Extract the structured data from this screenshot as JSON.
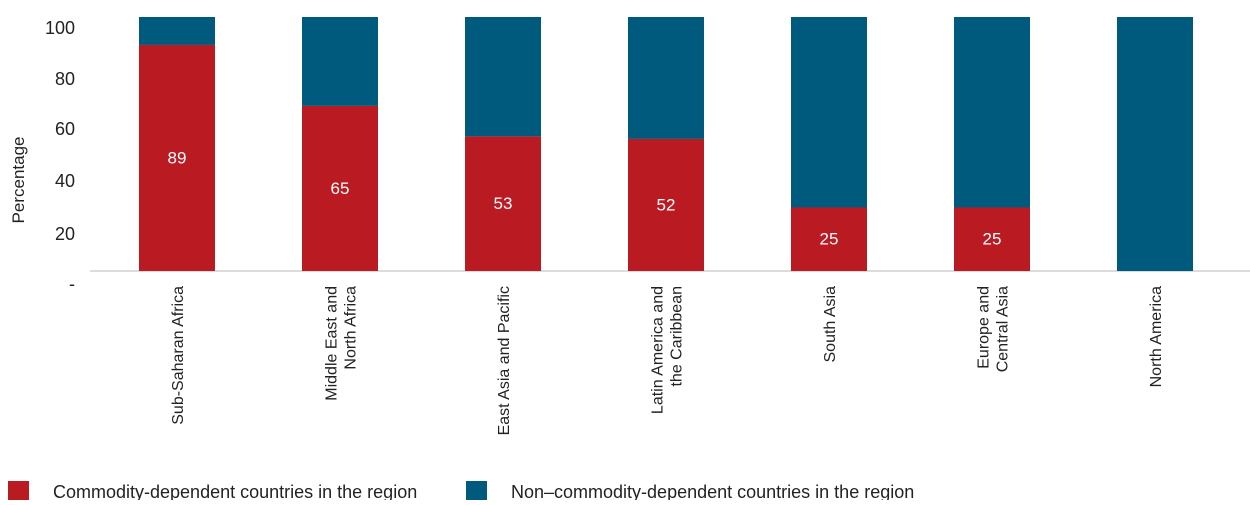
{
  "chart_data": {
    "type": "bar",
    "stacked": true,
    "ylabel": "Percentage",
    "ylim": [
      0,
      100
    ],
    "yticks": [
      {
        "value": 0,
        "label": "-"
      },
      {
        "value": 20,
        "label": "20"
      },
      {
        "value": 40,
        "label": "40"
      },
      {
        "value": 60,
        "label": "60"
      },
      {
        "value": 80,
        "label": "80"
      },
      {
        "value": 100,
        "label": "100"
      }
    ],
    "grid": false,
    "legend_position": "bottom",
    "categories": [
      [
        "Sub-Saharan Africa"
      ],
      [
        "Middle East and",
        "North Africa"
      ],
      [
        "East Asia and Pacific"
      ],
      [
        "Latin America and",
        "the Caribbean"
      ],
      [
        "South Asia"
      ],
      [
        "Europe and",
        "Central Asia"
      ],
      [
        "North America"
      ]
    ],
    "series": [
      {
        "name": "Commodity-dependent countries in the region",
        "color": "#BA1A22",
        "values": [
          89,
          65,
          53,
          52,
          25,
          25,
          0
        ],
        "labels": [
          "89",
          "65",
          "53",
          "52",
          "25",
          "25",
          ""
        ]
      },
      {
        "name": "Non–commodity-dependent countries in the region",
        "color": "#005A7E",
        "values": [
          11,
          35,
          47,
          48,
          75,
          75,
          100
        ]
      }
    ]
  }
}
